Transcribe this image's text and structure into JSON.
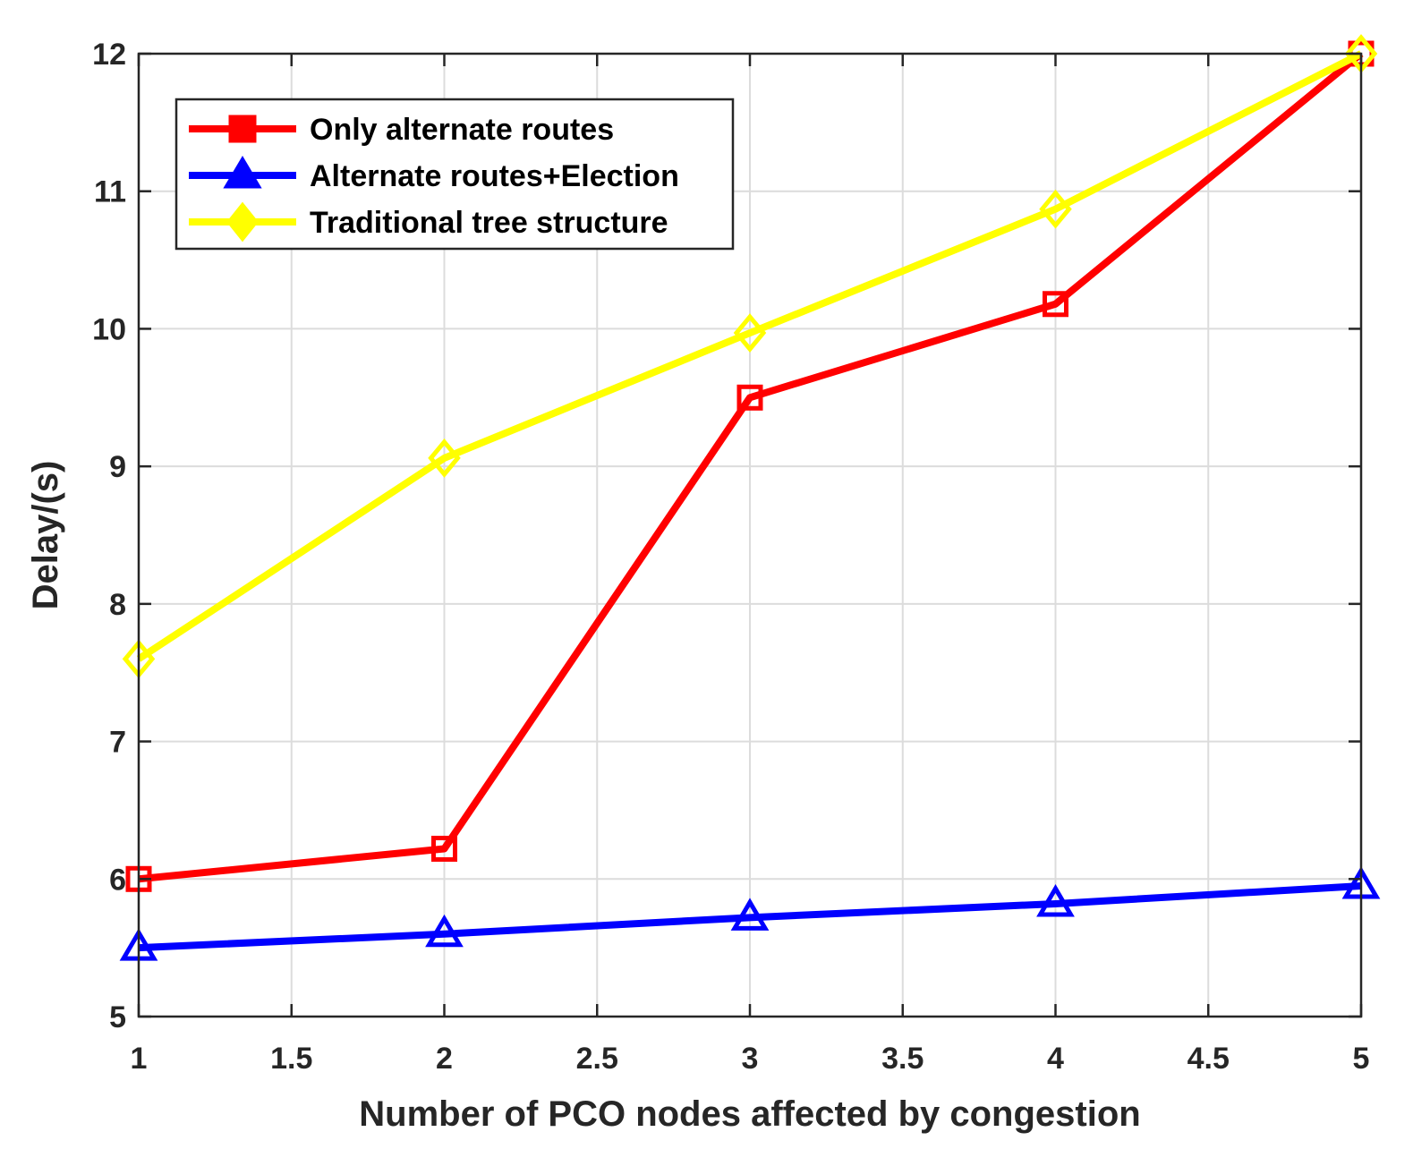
{
  "chart_data": {
    "type": "line",
    "xlabel": "Number of PCO nodes affected by congestion",
    "ylabel": "Delay/(s)",
    "xlim": [
      1,
      5
    ],
    "ylim": [
      5,
      12
    ],
    "xticks": [
      1,
      1.5,
      2,
      2.5,
      3,
      3.5,
      4,
      4.5,
      5
    ],
    "xtick_labels": [
      "1",
      "1.5",
      "2",
      "2.5",
      "3",
      "3.5",
      "4",
      "4.5",
      "5"
    ],
    "yticks": [
      5,
      6,
      7,
      8,
      9,
      10,
      11,
      12
    ],
    "ytick_labels": [
      "5",
      "6",
      "7",
      "8",
      "9",
      "10",
      "11",
      "12"
    ],
    "grid": true,
    "legend_position": "top-left",
    "x": [
      1,
      2,
      3,
      4,
      5
    ],
    "series": [
      {
        "name": "Only alternate routes",
        "values": [
          6.0,
          6.22,
          9.5,
          10.18,
          12.0
        ],
        "color": "#ff0000",
        "marker": "square"
      },
      {
        "name": "Alternate routes+Election",
        "values": [
          5.5,
          5.6,
          5.72,
          5.82,
          5.95
        ],
        "color": "#0000ff",
        "marker": "triangle"
      },
      {
        "name": "Traditional tree structure",
        "values": [
          7.6,
          9.06,
          9.97,
          10.87,
          12.0
        ],
        "color": "#ffff00",
        "marker": "diamond"
      }
    ]
  }
}
